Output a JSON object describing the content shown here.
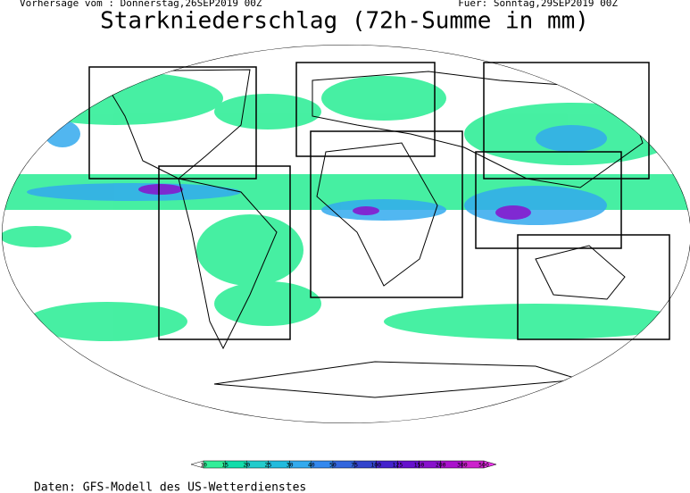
{
  "header": {
    "issued": "Vorhersage vom : Donnerstag,26SEP2019 00Z",
    "valid": "Fuer: Sonntag,29SEP2019 00Z",
    "title": "Starkniederschlag (72h-Summe in mm)"
  },
  "legend": {
    "levels": [
      10,
      15,
      20,
      25,
      30,
      40,
      50,
      75,
      100,
      125,
      150,
      200,
      300,
      500
    ],
    "colors": [
      "#ffffff",
      "#33ee99",
      "#11ddaa",
      "#22cccc",
      "#22bbdd",
      "#33aaee",
      "#3388ee",
      "#3366dd",
      "#3344cc",
      "#4422cc",
      "#6611cc",
      "#8811cc",
      "#aa11cc",
      "#cc22cc",
      "#ee33ee"
    ]
  },
  "footer": "Daten: GFS-Modell des US-Wetterdienstes"
}
